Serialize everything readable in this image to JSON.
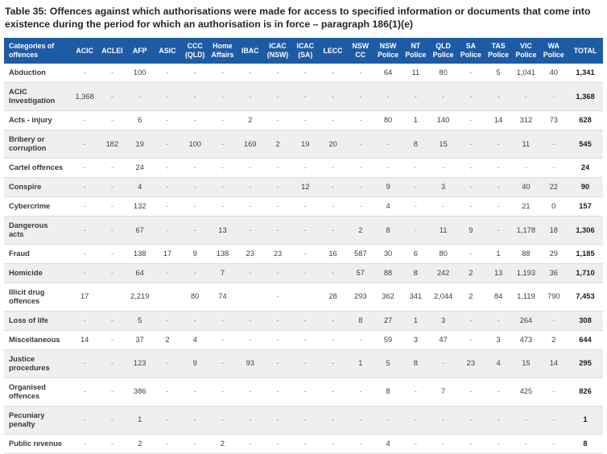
{
  "title": "Table 35: Offences against which authorisations were made for access to specified information or documents that come into existence during the period for which an authorisation is in force – paragraph 186(1)(e)",
  "colors": {
    "header_background": "#1e5ba5",
    "header_text": "#ffffff",
    "alternate_row_background": "#efefef"
  },
  "table": {
    "header": [
      "Categories of\noffences",
      "ACIC",
      "ACLEI",
      "AFP",
      "ASIC",
      "CCC\n(QLD)",
      "Home\nAffairs",
      "IBAC",
      "ICAC\n(NSW)",
      "ICAC\n(SA)",
      "LECC",
      "NSW\nCC",
      "NSW\nPolice",
      "NT\nPolice",
      "QLD\nPolice",
      "SA\nPolice",
      "TAS\nPolice",
      "VIC\nPolice",
      "WA\nPolice",
      "TOTAL"
    ],
    "rows": [
      {
        "category": "Abduction",
        "values": [
          "-",
          "-",
          "100",
          "-",
          "-",
          "-",
          "-",
          "-",
          "-",
          "-",
          "-",
          "64",
          "11",
          "80",
          "-",
          "5",
          "1,041",
          "40"
        ],
        "total": "1,341"
      },
      {
        "category": "ACIC\nInvestigation",
        "values": [
          "1,368",
          "-",
          "-",
          "-",
          "-",
          "-",
          "-",
          "-",
          "-",
          "-",
          "-",
          "-",
          "-",
          "-",
          "-",
          "-",
          "-",
          "-"
        ],
        "total": "1,368"
      },
      {
        "category": "Acts - injury",
        "values": [
          "-",
          "-",
          "6",
          "-",
          "-",
          "-",
          "2",
          "-",
          "-",
          "-",
          "-",
          "80",
          "1",
          "140",
          "-",
          "14",
          "312",
          "73"
        ],
        "total": "628"
      },
      {
        "category": "Bribery or\ncorruption",
        "values": [
          "-",
          "182",
          "19",
          "-",
          "100",
          "-",
          "169",
          "2",
          "19",
          "20",
          "-",
          "-",
          "8",
          "15",
          "-",
          "-",
          "11",
          "-"
        ],
        "total": "545"
      },
      {
        "category": "Cartel offences",
        "values": [
          "-",
          "-",
          "24",
          "-",
          "-",
          "-",
          "-",
          "-",
          "-",
          "-",
          "-",
          "-",
          "-",
          "-",
          "-",
          "-",
          "-",
          "-"
        ],
        "total": "24"
      },
      {
        "category": "Conspire",
        "values": [
          "-",
          "-",
          "4",
          "-",
          "-",
          "-",
          "-",
          "-",
          "12",
          "-",
          "-",
          "9",
          "-",
          "3",
          "-",
          "-",
          "40",
          "22"
        ],
        "total": "90"
      },
      {
        "category": "Cybercrime",
        "values": [
          "-",
          "-",
          "132",
          "-",
          "-",
          "-",
          "-",
          "-",
          "-",
          "-",
          "-",
          "4",
          "-",
          "-",
          "-",
          "-",
          "21",
          "0"
        ],
        "total": "157"
      },
      {
        "category": "Dangerous\nacts",
        "values": [
          "-",
          "-",
          "67",
          "-",
          "-",
          "13",
          "-",
          "-",
          "-",
          "-",
          "2",
          "8",
          "-",
          "11",
          "9",
          "-",
          "1,178",
          "18"
        ],
        "total": "1,306"
      },
      {
        "category": "Fraud",
        "values": [
          "-",
          "-",
          "138",
          "17",
          "9",
          "138",
          "23",
          "23",
          "-",
          "16",
          "587",
          "30",
          "6",
          "80",
          "-",
          "1",
          "88",
          "29"
        ],
        "total": "1,185"
      },
      {
        "category": "Homicide",
        "values": [
          "-",
          "-",
          "64",
          "-",
          "-",
          "7",
          "-",
          "-",
          "-",
          "-",
          "57",
          "88",
          "8",
          "242",
          "2",
          "13",
          "1,193",
          "36"
        ],
        "total": "1,710"
      },
      {
        "category": "Illicit drug\noffences",
        "values": [
          "17",
          "",
          "2,219",
          "",
          "80",
          "74",
          "",
          "-",
          "",
          "28",
          "293",
          "362",
          "341",
          "2,044",
          "2",
          "84",
          "1,119",
          "790"
        ],
        "total": "7,453"
      },
      {
        "category": "Loss of life",
        "values": [
          "-",
          "-",
          "5",
          "-",
          "-",
          "-",
          "-",
          "-",
          "-",
          "-",
          "8",
          "27",
          "1",
          "3",
          "-",
          "-",
          "264",
          "-"
        ],
        "total": "308"
      },
      {
        "category": "Miscellaneous",
        "values": [
          "14",
          "-",
          "37",
          "2",
          "4",
          "-",
          "-",
          "-",
          "-",
          "-",
          "-",
          "59",
          "3",
          "47",
          "-",
          "3",
          "473",
          "2"
        ],
        "total": "644"
      },
      {
        "category": "Justice\nprocedures",
        "values": [
          "-",
          "-",
          "123",
          "-",
          "9",
          "-",
          "93",
          "-",
          "-",
          "-",
          "1",
          "5",
          "8",
          "-",
          "23",
          "4",
          "15",
          "14"
        ],
        "total": "295"
      },
      {
        "category": "Organised\noffences",
        "values": [
          "-",
          "-",
          "386",
          "-",
          "-",
          "-",
          "-",
          "-",
          "-",
          "-",
          "-",
          "8",
          "-",
          "7",
          "-",
          "-",
          "425",
          "-"
        ],
        "total": "826"
      },
      {
        "category": "Pecuniary\npenalty",
        "values": [
          "-",
          "-",
          "1",
          "-",
          "-",
          "-",
          "-",
          "-",
          "-",
          "-",
          "-",
          "-",
          "-",
          "-",
          "-",
          "-",
          "-",
          "-"
        ],
        "total": "1"
      },
      {
        "category": "Public revenue",
        "values": [
          "-",
          "-",
          "2",
          "-",
          "-",
          "2",
          "-",
          "-",
          "-",
          "-",
          "-",
          "4",
          "-",
          "-",
          "-",
          "-",
          "-",
          "-"
        ],
        "total": "8"
      }
    ]
  }
}
